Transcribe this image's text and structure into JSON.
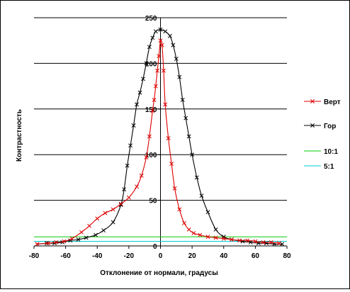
{
  "chart_data": {
    "type": "line",
    "title": "",
    "xlabel": "Отклонение от нормали, градусы",
    "ylabel": "Контрастность",
    "xlim": [
      -80,
      80
    ],
    "ylim": [
      0,
      250
    ],
    "x_ticks": [
      "-80",
      "-60",
      "-40",
      "-20",
      "0",
      "20",
      "40",
      "60",
      "80"
    ],
    "y_ticks": [
      "0",
      "50",
      "100",
      "150",
      "200",
      "250"
    ],
    "grid": "horizontal",
    "legend_position": "right",
    "series": [
      {
        "name": "Верт",
        "color": "#dd0000",
        "marker": "x",
        "points": [
          [
            -78,
            2
          ],
          [
            -71,
            3
          ],
          [
            -66,
            4
          ],
          [
            -61,
            5
          ],
          [
            -56,
            8
          ],
          [
            -50,
            15
          ],
          [
            -45,
            22
          ],
          [
            -40,
            30
          ],
          [
            -35,
            36
          ],
          [
            -30,
            40
          ],
          [
            -25,
            46
          ],
          [
            -20,
            53
          ],
          [
            -15,
            65
          ],
          [
            -12,
            77
          ],
          [
            -9,
            97
          ],
          [
            -7,
            120
          ],
          [
            -5,
            148
          ],
          [
            -4,
            160
          ],
          [
            -3,
            175
          ],
          [
            -2,
            192
          ],
          [
            -1,
            208
          ],
          [
            0,
            225
          ],
          [
            1,
            220
          ],
          [
            2,
            192
          ],
          [
            3,
            155
          ],
          [
            5,
            118
          ],
          [
            7,
            90
          ],
          [
            9,
            63
          ],
          [
            12,
            40
          ],
          [
            15,
            25
          ],
          [
            18,
            18
          ],
          [
            21,
            14
          ],
          [
            25,
            12
          ],
          [
            30,
            10
          ],
          [
            35,
            9
          ],
          [
            40,
            8
          ],
          [
            45,
            7
          ],
          [
            50,
            6
          ],
          [
            55,
            6
          ],
          [
            60,
            5
          ],
          [
            65,
            4
          ],
          [
            70,
            4
          ],
          [
            75,
            3
          ]
        ]
      },
      {
        "name": "Гор",
        "color": "#000000",
        "marker": "x",
        "points": [
          [
            -78,
            2
          ],
          [
            -72,
            3
          ],
          [
            -67,
            3
          ],
          [
            -62,
            4
          ],
          [
            -57,
            6
          ],
          [
            -52,
            7
          ],
          [
            -47,
            9
          ],
          [
            -41,
            12
          ],
          [
            -36,
            17
          ],
          [
            -30,
            26
          ],
          [
            -25,
            45
          ],
          [
            -23,
            62
          ],
          [
            -21,
            88
          ],
          [
            -19,
            110
          ],
          [
            -17,
            132
          ],
          [
            -15,
            155
          ],
          [
            -13,
            168
          ],
          [
            -11,
            183
          ],
          [
            -9,
            200
          ],
          [
            -7,
            218
          ],
          [
            -5,
            228
          ],
          [
            -3,
            235
          ],
          [
            0,
            237
          ],
          [
            3,
            235
          ],
          [
            6,
            230
          ],
          [
            8,
            220
          ],
          [
            10,
            205
          ],
          [
            12,
            185
          ],
          [
            14,
            160
          ],
          [
            16,
            140
          ],
          [
            18,
            120
          ],
          [
            20,
            100
          ],
          [
            23,
            75
          ],
          [
            26,
            55
          ],
          [
            30,
            37
          ],
          [
            35,
            18
          ],
          [
            40,
            10
          ],
          [
            45,
            7
          ],
          [
            52,
            5
          ],
          [
            57,
            4
          ],
          [
            62,
            3
          ],
          [
            67,
            3
          ],
          [
            72,
            2
          ],
          [
            77,
            2
          ]
        ]
      },
      {
        "name": "10:1",
        "color": "#00cc00",
        "marker": "none",
        "points": [
          [
            -80,
            10
          ],
          [
            80,
            10
          ]
        ]
      },
      {
        "name": "5:1",
        "color": "#00cccc",
        "marker": "none",
        "points": [
          [
            -80,
            5
          ],
          [
            80,
            5
          ]
        ]
      }
    ]
  }
}
